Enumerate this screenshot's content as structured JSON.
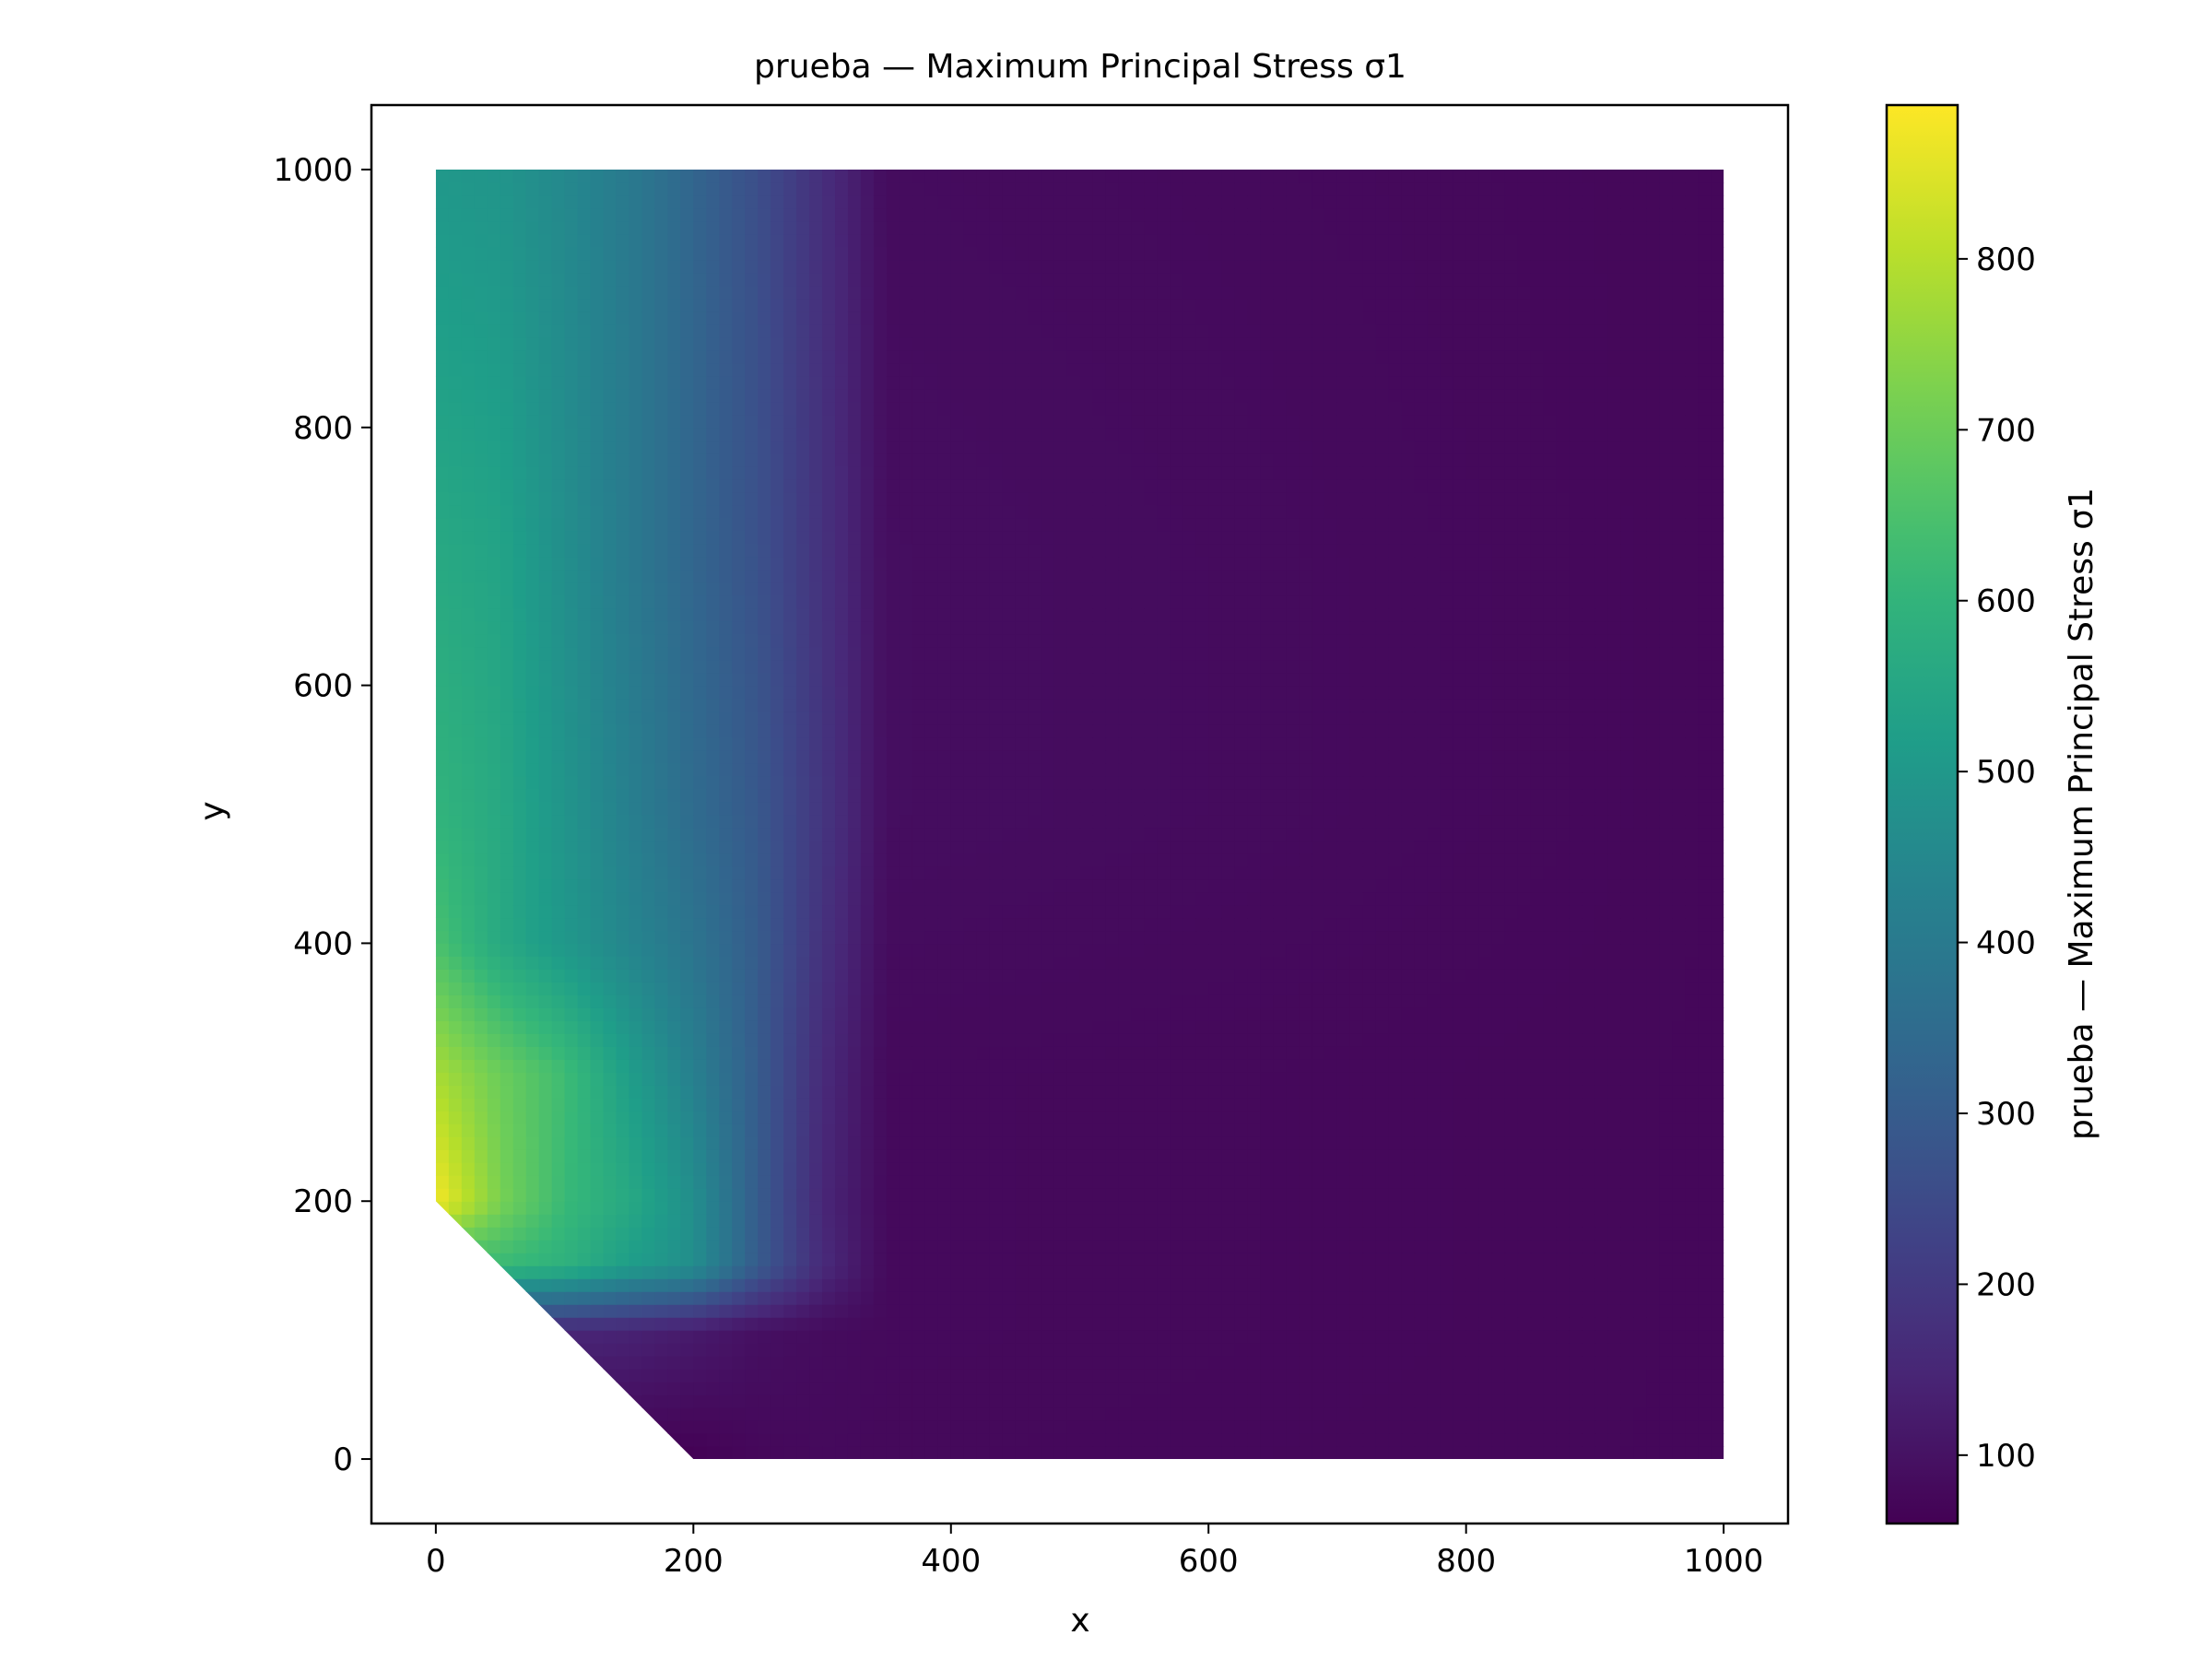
{
  "chart_data": {
    "type": "heatmap",
    "title": "prueba — Maximum Principal Stress σ1",
    "xlabel": "x",
    "ylabel": "y",
    "xlim": [
      -50,
      1050
    ],
    "ylim": [
      -50,
      1050
    ],
    "xticks": [
      0,
      200,
      400,
      600,
      800,
      1000
    ],
    "yticks": [
      0,
      200,
      400,
      600,
      800,
      1000
    ],
    "domain_polygon": [
      [
        0,
        200
      ],
      [
        0,
        1000
      ],
      [
        1000,
        1000
      ],
      [
        1000,
        0
      ],
      [
        200,
        0
      ]
    ],
    "colormap": "viridis",
    "colorbar": {
      "label": "prueba — Maximum Principal Stress σ1",
      "range": [
        60,
        890
      ],
      "ticks": [
        100,
        200,
        300,
        400,
        500,
        600,
        700,
        800
      ]
    },
    "grid_x": [
      0,
      50,
      100,
      150,
      200,
      250,
      300,
      350,
      1000
    ],
    "grid_y": [
      0,
      100,
      150,
      200,
      300,
      400,
      500,
      700,
      1000
    ],
    "values": [
      [
        null,
        null,
        null,
        null,
        60,
        75,
        80,
        78,
        75
      ],
      [
        null,
        null,
        150,
        140,
        120,
        95,
        85,
        80,
        75
      ],
      [
        null,
        620,
        590,
        520,
        470,
        300,
        160,
        80,
        75
      ],
      [
        880,
        720,
        620,
        560,
        470,
        300,
        150,
        80,
        75
      ],
      [
        780,
        700,
        630,
        520,
        420,
        300,
        160,
        80,
        75
      ],
      [
        650,
        560,
        500,
        440,
        380,
        300,
        180,
        85,
        75
      ],
      [
        600,
        560,
        490,
        420,
        350,
        290,
        190,
        90,
        75
      ],
      [
        560,
        540,
        470,
        400,
        330,
        270,
        180,
        90,
        75
      ],
      [
        500,
        490,
        450,
        400,
        330,
        260,
        170,
        85,
        75
      ]
    ]
  }
}
